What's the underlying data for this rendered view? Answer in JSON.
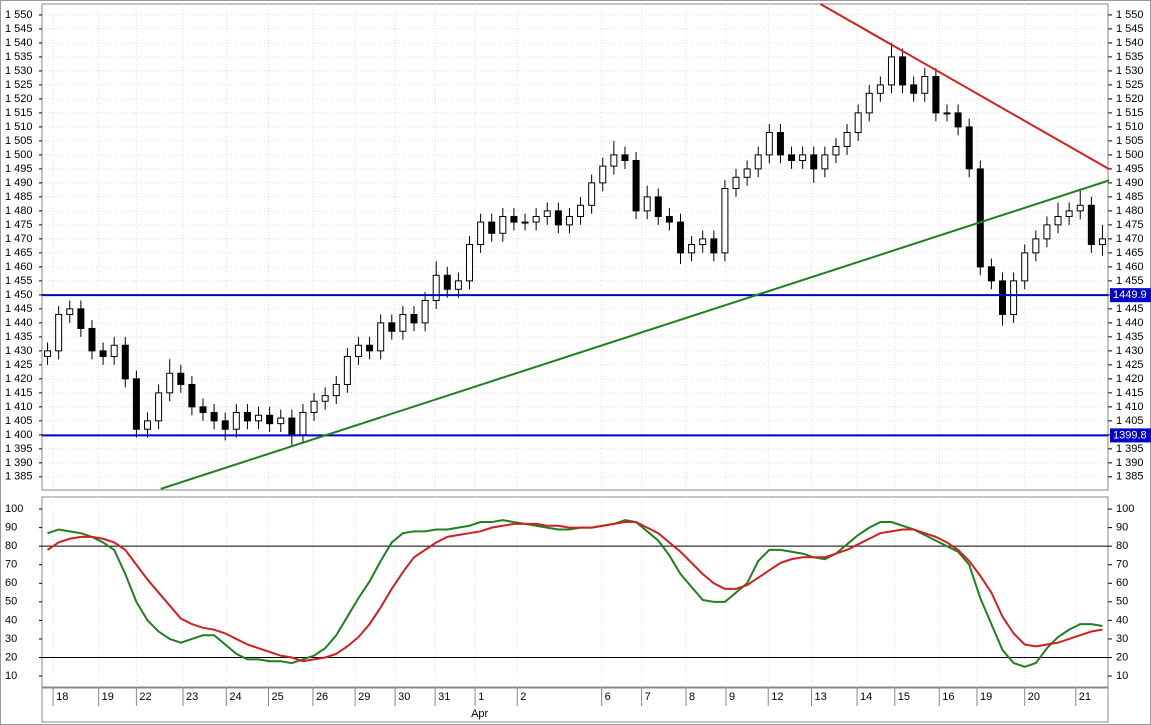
{
  "chart_data": [
    {
      "type": "candlestick",
      "xlim": [
        -0.5,
        95.5
      ],
      "xticks": [
        {
          "value": 0.5,
          "label": "18"
        },
        {
          "value": 4.6,
          "label": "19"
        },
        {
          "value": 8,
          "label": "22"
        },
        {
          "value": 12.2,
          "label": "23"
        },
        {
          "value": 16.1,
          "label": "24"
        },
        {
          "value": 19.9,
          "label": "25"
        },
        {
          "value": 23.9,
          "label": "26"
        },
        {
          "value": 27.7,
          "label": "29"
        },
        {
          "value": 31.3,
          "label": "30"
        },
        {
          "value": 34.9,
          "label": "31"
        },
        {
          "value": 38.5,
          "label": "1"
        },
        {
          "value": 42.3,
          "label": "2"
        },
        {
          "value": 49.9,
          "label": "6"
        },
        {
          "value": 53.5,
          "label": "7"
        },
        {
          "value": 57.5,
          "label": "8"
        },
        {
          "value": 61.1,
          "label": "9"
        },
        {
          "value": 64.9,
          "label": "12"
        },
        {
          "value": 68.8,
          "label": "13"
        },
        {
          "value": 72.9,
          "label": "14"
        },
        {
          "value": 76.3,
          "label": "15"
        },
        {
          "value": 80.3,
          "label": "16"
        },
        {
          "value": 83.7,
          "label": "19"
        },
        {
          "value": 88,
          "label": "20"
        },
        {
          "value": 92.6,
          "label": "21"
        }
      ],
      "month_labels": [
        {
          "value": 38.5,
          "label": "Apr"
        }
      ],
      "ylim": [
        1380.3,
        1553.9
      ],
      "yticks": [
        {
          "value": 1385,
          "label": "1 385"
        },
        {
          "value": 1390,
          "label": "1 390"
        },
        {
          "value": 1395,
          "label": "1 395"
        },
        {
          "value": 1400,
          "label": "1 400"
        },
        {
          "value": 1405,
          "label": "1 405"
        },
        {
          "value": 1410,
          "label": "1 410"
        },
        {
          "value": 1415,
          "label": "1 415"
        },
        {
          "value": 1420,
          "label": "1 420"
        },
        {
          "value": 1425,
          "label": "1 425"
        },
        {
          "value": 1430,
          "label": "1 430"
        },
        {
          "value": 1435,
          "label": "1 435"
        },
        {
          "value": 1440,
          "label": "1 440"
        },
        {
          "value": 1445,
          "label": "1 445"
        },
        {
          "value": 1450,
          "label": "1 450"
        },
        {
          "value": 1455,
          "label": "1 455"
        },
        {
          "value": 1460,
          "label": "1 460"
        },
        {
          "value": 1465,
          "label": "1 465"
        },
        {
          "value": 1470,
          "label": "1 470"
        },
        {
          "value": 1475,
          "label": "1 475"
        },
        {
          "value": 1480,
          "label": "1 480"
        },
        {
          "value": 1485,
          "label": "1 485"
        },
        {
          "value": 1490,
          "label": "1 490"
        },
        {
          "value": 1495,
          "label": "1 495"
        },
        {
          "value": 1500,
          "label": "1 500"
        },
        {
          "value": 1505,
          "label": "1 505"
        },
        {
          "value": 1510,
          "label": "1 510"
        },
        {
          "value": 1515,
          "label": "1 515"
        },
        {
          "value": 1520,
          "label": "1 520"
        },
        {
          "value": 1525,
          "label": "1 525"
        },
        {
          "value": 1530,
          "label": "1 530"
        },
        {
          "value": 1535,
          "label": "1 535"
        },
        {
          "value": 1540,
          "label": "1 540"
        },
        {
          "value": 1545,
          "label": "1 545"
        },
        {
          "value": 1550,
          "label": "1 550"
        }
      ],
      "grid": true,
      "open": [
        1428,
        1430,
        1443,
        1445,
        1438,
        1430,
        1428,
        1432,
        1420,
        1402,
        1405,
        1415,
        1422,
        1418,
        1410,
        1408,
        1405,
        1402,
        1408,
        1405,
        1407,
        1404,
        1406,
        1400,
        1408,
        1412,
        1414,
        1418,
        1428,
        1432,
        1430,
        1440,
        1437,
        1443,
        1440,
        1448,
        1457,
        1452,
        1455,
        1468,
        1476,
        1472,
        1478,
        1476,
        1476,
        1478,
        1480,
        1475,
        1478,
        1482,
        1490,
        1496,
        1500,
        1498,
        1480,
        1485,
        1478,
        1476,
        1465,
        1468,
        1470,
        1465,
        1488,
        1492,
        1495,
        1500,
        1508,
        1500,
        1498,
        1500,
        1495,
        1500,
        1503,
        1508,
        1515,
        1522,
        1525,
        1535,
        1525,
        1522,
        1528,
        1515,
        1515,
        1510,
        1495,
        1460,
        1455,
        1443,
        1455,
        1465,
        1470,
        1475,
        1478,
        1480,
        1482,
        1468
      ],
      "high": [
        1433,
        1446,
        1448,
        1448,
        1441,
        1433,
        1435,
        1435,
        1423,
        1408,
        1418,
        1427,
        1425,
        1421,
        1413,
        1411,
        1408,
        1411,
        1411,
        1410,
        1410,
        1409,
        1409,
        1411,
        1415,
        1417,
        1421,
        1431,
        1435,
        1435,
        1443,
        1443,
        1446,
        1446,
        1451,
        1462,
        1460,
        1458,
        1471,
        1479,
        1479,
        1481,
        1481,
        1479,
        1481,
        1483,
        1483,
        1481,
        1485,
        1493,
        1499,
        1505,
        1503,
        1501,
        1489,
        1488,
        1481,
        1479,
        1471,
        1473,
        1473,
        1491,
        1495,
        1498,
        1503,
        1511,
        1511,
        1503,
        1503,
        1503,
        1503,
        1506,
        1511,
        1518,
        1525,
        1528,
        1540,
        1538,
        1528,
        1531,
        1531,
        1518,
        1518,
        1513,
        1498,
        1463,
        1458,
        1458,
        1468,
        1473,
        1478,
        1483,
        1483,
        1488,
        1485,
        1475
      ],
      "low": [
        1425,
        1427,
        1440,
        1435,
        1427,
        1425,
        1425,
        1417,
        1399,
        1399,
        1402,
        1412,
        1415,
        1407,
        1405,
        1402,
        1398,
        1399,
        1402,
        1402,
        1401,
        1401,
        1396,
        1397,
        1405,
        1409,
        1411,
        1415,
        1425,
        1427,
        1427,
        1434,
        1434,
        1437,
        1437,
        1445,
        1449,
        1449,
        1452,
        1465,
        1469,
        1469,
        1473,
        1473,
        1473,
        1475,
        1472,
        1472,
        1475,
        1479,
        1487,
        1493,
        1495,
        1477,
        1477,
        1475,
        1473,
        1461,
        1462,
        1465,
        1462,
        1462,
        1485,
        1489,
        1492,
        1497,
        1497,
        1495,
        1495,
        1490,
        1492,
        1497,
        1500,
        1505,
        1512,
        1519,
        1522,
        1522,
        1519,
        1519,
        1512,
        1512,
        1507,
        1492,
        1457,
        1452,
        1439,
        1440,
        1452,
        1462,
        1467,
        1472,
        1475,
        1477,
        1465,
        1464
      ],
      "close": [
        1430,
        1443,
        1445,
        1438,
        1430,
        1428,
        1432,
        1420,
        1402,
        1405,
        1415,
        1422,
        1418,
        1410,
        1408,
        1405,
        1402,
        1408,
        1405,
        1407,
        1404,
        1406,
        1400,
        1408,
        1412,
        1414,
        1418,
        1428,
        1432,
        1430,
        1440,
        1437,
        1443,
        1440,
        1448,
        1457,
        1452,
        1455,
        1468,
        1476,
        1472,
        1478,
        1476,
        1476,
        1478,
        1480,
        1475,
        1478,
        1482,
        1490,
        1496,
        1500,
        1498,
        1480,
        1485,
        1478,
        1476,
        1465,
        1468,
        1470,
        1465,
        1488,
        1492,
        1495,
        1500,
        1508,
        1500,
        1498,
        1500,
        1495,
        1500,
        1503,
        1508,
        1515,
        1522,
        1525,
        1535,
        1525,
        1522,
        1528,
        1515,
        1515,
        1510,
        1495,
        1460,
        1455,
        1443,
        1455,
        1465,
        1470,
        1475,
        1478,
        1480,
        1482,
        1468,
        1470
      ],
      "hlines": [
        {
          "value": 1449.9,
          "color": "#0000c8"
        },
        {
          "value": 1399.8,
          "color": "#0000c8"
        }
      ],
      "trendlines": [
        {
          "x": [
            69.6,
            95.6
          ],
          "y": [
            1553.9,
            1494.9
          ],
          "color": "#d02020"
        },
        {
          "x": [
            10.2,
            95.6
          ],
          "y": [
            1380.7,
            1490.9
          ],
          "color": "#208020"
        }
      ]
    },
    {
      "type": "line",
      "xlim": [
        -0.5,
        95.5
      ],
      "ylim": [
        4.1,
        106.5
      ],
      "yticks": [
        10,
        20,
        30,
        40,
        50,
        60,
        70,
        80,
        90,
        100
      ],
      "levels": [
        80,
        20
      ],
      "series": [
        {
          "color": "#208020",
          "values": [
            87,
            89,
            88,
            87,
            85,
            82,
            78,
            65,
            50,
            40,
            34,
            30,
            28,
            30,
            32,
            32,
            27,
            22,
            19,
            19,
            18,
            18,
            17,
            19,
            21,
            25,
            32,
            42,
            52,
            61,
            72,
            82,
            87,
            88,
            88,
            89,
            89,
            90,
            91,
            93,
            93,
            94,
            93,
            92,
            91,
            90,
            89,
            89,
            90,
            90,
            91,
            92,
            94,
            93,
            88,
            83,
            75,
            65,
            58,
            51,
            50,
            50,
            55,
            60,
            72,
            78,
            78,
            77,
            76,
            74,
            73,
            76,
            81,
            86,
            90,
            93,
            93,
            91,
            89,
            86,
            83,
            80,
            77,
            70,
            52,
            38,
            24,
            17,
            15,
            17,
            25,
            31,
            35,
            38,
            38,
            37
          ]
        },
        {
          "color": "#d02020",
          "values": [
            78,
            82,
            84,
            85,
            85,
            84,
            82,
            78,
            70,
            62,
            55,
            48,
            41,
            38,
            36,
            35,
            33,
            30,
            27,
            25,
            23,
            21,
            20,
            18,
            19,
            20,
            22,
            26,
            31,
            38,
            47,
            57,
            66,
            74,
            78,
            82,
            85,
            86,
            87,
            88,
            90,
            91,
            92,
            92,
            92,
            91,
            91,
            90,
            90,
            90,
            91,
            92,
            93,
            93,
            90,
            87,
            82,
            77,
            71,
            65,
            60,
            57,
            57,
            59,
            63,
            67,
            71,
            73,
            74,
            74,
            74,
            76,
            78,
            81,
            84,
            87,
            88,
            89,
            89,
            87,
            85,
            82,
            78,
            72,
            64,
            55,
            42,
            33,
            27,
            26,
            27,
            28,
            30,
            32,
            34,
            35
          ]
        }
      ]
    }
  ]
}
